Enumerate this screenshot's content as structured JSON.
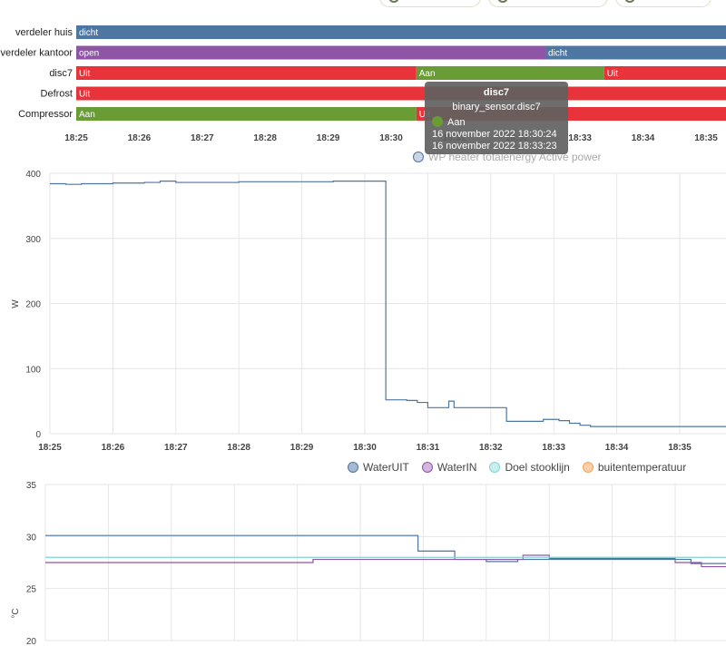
{
  "colors": {
    "blue": "#4e76a3",
    "purple": "#8e54a6",
    "red": "#e8333a",
    "green": "#6a9c35",
    "cyan": "#7fd4d6",
    "orange": "#f5a35c",
    "grid": "#e6e6e6"
  },
  "header": {
    "chips": [
      "chip-1",
      "chip-2",
      "chip-3"
    ]
  },
  "tooltip": {
    "title": "disc7",
    "entity": "binary_sensor.disc7",
    "state": "Aan",
    "start": "16 november 2022 18:30:24",
    "end": "16 november 2022 18:33:23"
  },
  "chart_data": [
    {
      "type": "timeline",
      "x_ticks": [
        "18:25",
        "18:26",
        "18:27",
        "18:28",
        "18:29",
        "18:30",
        "18:31",
        "18:32",
        "18:33",
        "18:34",
        "18:35"
      ],
      "rows": [
        {
          "label": "verdeler huis",
          "segments": [
            {
              "state": "dicht",
              "start": "18:25:00",
              "end": "18:35:50",
              "color": "#4e76a3"
            }
          ]
        },
        {
          "label": "verdeler kantoor",
          "segments": [
            {
              "state": "open",
              "start": "18:25:00",
              "end": "18:32:27",
              "color": "#8e54a6"
            },
            {
              "state": "dicht",
              "start": "18:32:27",
              "end": "18:35:50",
              "color": "#4e76a3"
            }
          ]
        },
        {
          "label": "disc7",
          "segments": [
            {
              "state": "Uit",
              "start": "18:25:00",
              "end": "18:30:24",
              "color": "#e8333a"
            },
            {
              "state": "Aan",
              "start": "18:30:24",
              "end": "18:33:23",
              "color": "#6a9c35"
            },
            {
              "state": "Uit",
              "start": "18:33:23",
              "end": "18:35:50",
              "color": "#e8333a"
            }
          ]
        },
        {
          "label": "Defrost",
          "segments": [
            {
              "state": "Uit",
              "start": "18:25:00",
              "end": "18:35:50",
              "color": "#e8333a"
            }
          ]
        },
        {
          "label": "Compressor",
          "segments": [
            {
              "state": "Aan",
              "start": "18:25:00",
              "end": "18:30:24",
              "color": "#6a9c35"
            },
            {
              "state": "Uit",
              "start": "18:30:24",
              "end": "18:35:50",
              "color": "#e8333a"
            }
          ]
        }
      ]
    },
    {
      "type": "line",
      "legend": [
        "WP heater totalenergy Active power"
      ],
      "ylabel": "W",
      "ylim": [
        0,
        400
      ],
      "y_ticks": [
        0,
        100,
        200,
        300,
        400
      ],
      "x_ticks": [
        "18:25",
        "18:26",
        "18:27",
        "18:28",
        "18:29",
        "18:30",
        "18:31",
        "18:32",
        "18:33",
        "18:34",
        "18:35"
      ],
      "series": [
        {
          "color": "#4e76a3",
          "step": true,
          "points": [
            [
              "18:25:00",
              384
            ],
            [
              "18:25:15",
              383
            ],
            [
              "18:25:30",
              384
            ],
            [
              "18:26:00",
              385
            ],
            [
              "18:26:30",
              386
            ],
            [
              "18:26:45",
              388
            ],
            [
              "18:27:00",
              386
            ],
            [
              "18:28:00",
              387
            ],
            [
              "18:29:00",
              387
            ],
            [
              "18:29:30",
              388
            ],
            [
              "18:30:00",
              388
            ],
            [
              "18:30:20",
              52
            ],
            [
              "18:30:40",
              51
            ],
            [
              "18:30:50",
              48
            ],
            [
              "18:31:00",
              40
            ],
            [
              "18:31:20",
              50
            ],
            [
              "18:31:25",
              40
            ],
            [
              "18:32:15",
              19
            ],
            [
              "18:32:50",
              22
            ],
            [
              "18:33:05",
              20
            ],
            [
              "18:33:15",
              16
            ],
            [
              "18:33:25",
              13
            ],
            [
              "18:33:35",
              11
            ],
            [
              "18:34:00",
              11
            ],
            [
              "18:35:00",
              11
            ],
            [
              "18:35:50",
              11
            ]
          ]
        }
      ]
    },
    {
      "type": "line",
      "legend": [
        "WaterUIT",
        "WaterIN",
        "Doel stooklijn",
        "buitentemperatuur"
      ],
      "ylabel": "°C",
      "ylim": [
        20,
        35
      ],
      "y_ticks": [
        20,
        25,
        30,
        35
      ],
      "series": [
        {
          "name": "WaterUIT",
          "color": "#4e76a3",
          "step": true,
          "points": [
            [
              "18:25:00",
              30.1
            ],
            [
              "18:30:55",
              28.6
            ],
            [
              "18:31:30",
              27.8
            ],
            [
              "18:32:00",
              27.6
            ],
            [
              "18:32:30",
              27.8
            ],
            [
              "18:33:00",
              27.8
            ],
            [
              "18:35:15",
              27.4
            ],
            [
              "18:35:50",
              27.4
            ]
          ]
        },
        {
          "name": "WaterIN",
          "color": "#8e54a6",
          "step": true,
          "points": [
            [
              "18:25:00",
              27.5
            ],
            [
              "18:29:15",
              27.8
            ],
            [
              "18:32:35",
              28.2
            ],
            [
              "18:33:00",
              27.9
            ],
            [
              "18:35:00",
              27.5
            ],
            [
              "18:35:25",
              27.1
            ],
            [
              "18:35:50",
              27.1
            ]
          ]
        },
        {
          "name": "Doel stooklijn",
          "color": "#7fd4d6",
          "step": false,
          "points": [
            [
              "18:25:00",
              28.0
            ],
            [
              "18:35:50",
              28.0
            ]
          ]
        }
      ]
    }
  ]
}
